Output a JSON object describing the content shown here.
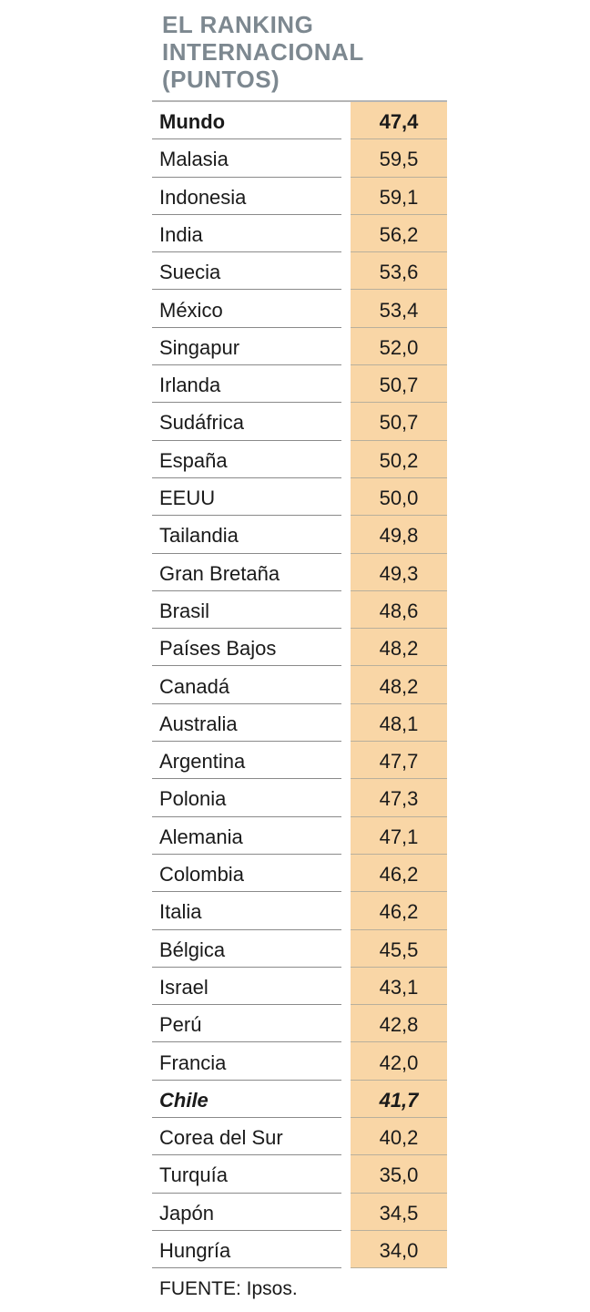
{
  "title_lines": [
    "EL RANKING",
    "INTERNACIONAL",
    "(PUNTOS)"
  ],
  "source": "FUENTE: Ipsos.",
  "chart_data": {
    "type": "table",
    "title": "EL RANKING INTERNACIONAL (PUNTOS)",
    "columns": [
      "",
      ""
    ],
    "highlight_color": "#f9d6a6",
    "rows": [
      {
        "label": "Mundo",
        "value": "47,4",
        "emphasis": "bold"
      },
      {
        "label": "Malasia",
        "value": "59,5"
      },
      {
        "label": "Indonesia",
        "value": "59,1"
      },
      {
        "label": "India",
        "value": "56,2"
      },
      {
        "label": "Suecia",
        "value": "53,6"
      },
      {
        "label": "México",
        "value": "53,4"
      },
      {
        "label": "Singapur",
        "value": "52,0"
      },
      {
        "label": "Irlanda",
        "value": "50,7"
      },
      {
        "label": "Sudáfrica",
        "value": "50,7"
      },
      {
        "label": "España",
        "value": "50,2"
      },
      {
        "label": "EEUU",
        "value": "50,0"
      },
      {
        "label": "Tailandia",
        "value": "49,8"
      },
      {
        "label": "Gran Bretaña",
        "value": "49,3"
      },
      {
        "label": "Brasil",
        "value": "48,6"
      },
      {
        "label": "Países Bajos",
        "value": "48,2"
      },
      {
        "label": "Canadá",
        "value": "48,2"
      },
      {
        "label": "Australia",
        "value": "48,1"
      },
      {
        "label": "Argentina",
        "value": "47,7"
      },
      {
        "label": "Polonia",
        "value": "47,3"
      },
      {
        "label": "Alemania",
        "value": "47,1"
      },
      {
        "label": "Colombia",
        "value": "46,2"
      },
      {
        "label": "Italia",
        "value": "46,2"
      },
      {
        "label": "Bélgica",
        "value": "45,5"
      },
      {
        "label": "Israel",
        "value": "43,1"
      },
      {
        "label": "Perú",
        "value": "42,8"
      },
      {
        "label": "Francia",
        "value": "42,0"
      },
      {
        "label": "Chile",
        "value": "41,7",
        "emphasis": "bold-italic"
      },
      {
        "label": "Corea del Sur",
        "value": "40,2"
      },
      {
        "label": "Turquía",
        "value": "35,0"
      },
      {
        "label": "Japón",
        "value": "34,5"
      },
      {
        "label": "Hungría",
        "value": "34,0"
      }
    ]
  }
}
